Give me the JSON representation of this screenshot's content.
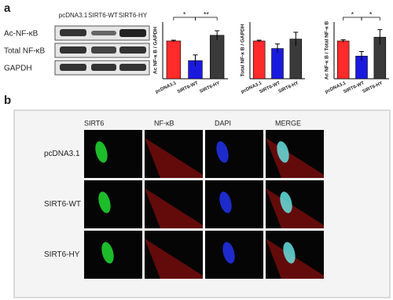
{
  "panel_labels": [
    "a",
    "b"
  ],
  "blot": {
    "lanes": [
      "pcDNA3.1",
      "SIRT6-WT",
      "SIRT6-HY"
    ],
    "rows": [
      "Ac-NF-κB",
      "Total NF-κB",
      "GAPDH"
    ]
  },
  "chart_data": [
    {
      "type": "bar",
      "ylabel": "Ac NF-κ B / GAPDH",
      "categories": [
        "pcDNA3.1",
        "SIRT6-WT",
        "SIRT6-HY"
      ],
      "values": [
        1.0,
        0.48,
        1.15
      ],
      "errors": [
        0.02,
        0.15,
        0.12
      ],
      "colors": [
        "#ff2a2a",
        "#1a1adf",
        "#3a3a3a"
      ],
      "ylim": [
        0,
        1.5
      ],
      "annotations": [
        "*",
        "**"
      ]
    },
    {
      "type": "bar",
      "ylabel": "Total NF-κ B / GAPDH",
      "categories": [
        "pcDNA3.1",
        "SIRT6-WT",
        "SIRT6-HY"
      ],
      "values": [
        1.0,
        0.8,
        1.05
      ],
      "errors": [
        0.02,
        0.12,
        0.18
      ],
      "colors": [
        "#ff2a2a",
        "#1a1adf",
        "#3a3a3a"
      ],
      "ylim": [
        0,
        1.5
      ],
      "annotations": []
    },
    {
      "type": "bar",
      "ylabel": "Ac NF-κ B / Total NF-κ B",
      "categories": [
        "pcDNA3.1",
        "SIRT6-WT",
        "SIRT6-HY"
      ],
      "values": [
        1.0,
        0.6,
        1.1
      ],
      "errors": [
        0.03,
        0.12,
        0.2
      ],
      "colors": [
        "#ff2a2a",
        "#1a1adf",
        "#3a3a3a"
      ],
      "ylim": [
        0,
        1.5
      ],
      "annotations": [
        "*",
        "*"
      ]
    }
  ],
  "microscopy": {
    "columns": [
      "SIRT6",
      "NF-κB",
      "DAPI",
      "MERGE"
    ],
    "rows": [
      "pcDNA3.1",
      "SIRT6-WT",
      "SIRT6-HY"
    ]
  }
}
